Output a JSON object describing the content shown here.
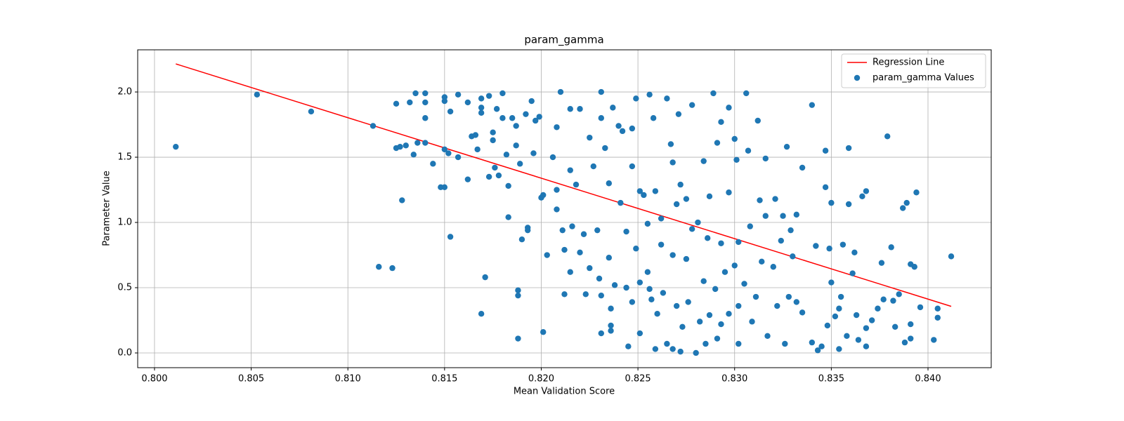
{
  "chart_data": {
    "type": "scatter",
    "title": "param_gamma",
    "x_label": "Mean Validation Score",
    "y_label": "Parameter Value",
    "xlim": [
      0.79913,
      0.84327
    ],
    "ylim": [
      -0.113,
      2.323
    ],
    "xticks": [
      {
        "value": 0.8,
        "label": "0.800"
      },
      0.805,
      {
        "value": 0.81,
        "label": "0.810"
      },
      0.815,
      {
        "value": 0.82,
        "label": "0.820"
      },
      0.825,
      {
        "value": 0.83,
        "label": "0.830"
      },
      0.835,
      {
        "value": 0.84,
        "label": "0.840"
      }
    ],
    "yticks": [
      {
        "value": 0,
        "label": "0.0"
      },
      0.5,
      {
        "value": 1,
        "label": "1.0"
      },
      1.5,
      {
        "value": 2,
        "label": "2.0"
      }
    ],
    "grid": true,
    "legend": "upper right",
    "series": [
      {
        "name": "Regression Line",
        "type": "line",
        "color": "#ff0000",
        "x": [
          0.8011,
          0.8412
        ],
        "values": [
          2.215,
          0.357
        ]
      },
      {
        "name": "param_gamma Values",
        "type": "scatter",
        "color": "#1f77b4",
        "x": [
          0.8011,
          0.8053,
          0.8081,
          0.8113,
          0.8116,
          0.8123,
          0.8125,
          0.8125,
          0.8127,
          0.8128,
          0.813,
          0.8132,
          0.8134,
          0.8135,
          0.8136,
          0.814,
          0.814,
          0.814,
          0.814,
          0.8144,
          0.8148,
          0.815,
          0.815,
          0.815,
          0.815,
          0.8152,
          0.8153,
          0.8153,
          0.8157,
          0.8157,
          0.8162,
          0.8162,
          0.8164,
          0.8166,
          0.8167,
          0.8169,
          0.8169,
          0.8169,
          0.8169,
          0.8171,
          0.8173,
          0.8173,
          0.8175,
          0.8175,
          0.8176,
          0.8177,
          0.8178,
          0.818,
          0.818,
          0.8182,
          0.8183,
          0.8183,
          0.8185,
          0.8187,
          0.8187,
          0.8188,
          0.8188,
          0.8188,
          0.8189,
          0.819,
          0.8192,
          0.8193,
          0.8193,
          0.8195,
          0.8196,
          0.8197,
          0.8199,
          0.82,
          0.8201,
          0.8201,
          0.8203,
          0.8206,
          0.8208,
          0.8208,
          0.8208,
          0.821,
          0.8211,
          0.8212,
          0.8212,
          0.8215,
          0.8215,
          0.8215,
          0.8216,
          0.8218,
          0.822,
          0.822,
          0.8222,
          0.8223,
          0.8225,
          0.8225,
          0.8227,
          0.8229,
          0.823,
          0.8231,
          0.8231,
          0.8231,
          0.8231,
          0.8233,
          0.8235,
          0.8235,
          0.8236,
          0.8236,
          0.8236,
          0.8237,
          0.8238,
          0.824,
          0.8241,
          0.8242,
          0.8244,
          0.8244,
          0.8245,
          0.8247,
          0.8247,
          0.8247,
          0.8249,
          0.8249,
          0.8251,
          0.8251,
          0.8251,
          0.8253,
          0.8255,
          0.8255,
          0.8256,
          0.8256,
          0.8257,
          0.8258,
          0.8259,
          0.8259,
          0.826,
          0.8262,
          0.8262,
          0.8263,
          0.8265,
          0.8265,
          0.8267,
          0.8268,
          0.8268,
          0.8268,
          0.827,
          0.827,
          0.8271,
          0.8272,
          0.8272,
          0.8273,
          0.8275,
          0.8275,
          0.8276,
          0.8278,
          0.8278,
          0.828,
          0.8281,
          0.8282,
          0.8284,
          0.8284,
          0.8285,
          0.8286,
          0.8287,
          0.8287,
          0.8289,
          0.829,
          0.8291,
          0.8291,
          0.8293,
          0.8293,
          0.8293,
          0.8295,
          0.8297,
          0.8297,
          0.8297,
          0.83,
          0.83,
          0.8301,
          0.8302,
          0.8302,
          0.8302,
          0.8305,
          0.8306,
          0.8307,
          0.8308,
          0.8309,
          0.8311,
          0.8312,
          0.8313,
          0.8314,
          0.8316,
          0.8316,
          0.8317,
          0.832,
          0.8321,
          0.8322,
          0.8324,
          0.8325,
          0.8326,
          0.8327,
          0.8328,
          0.8329,
          0.833,
          0.8332,
          0.8332,
          0.8335,
          0.8335,
          0.834,
          0.834,
          0.8342,
          0.8343,
          0.8345,
          0.8347,
          0.8347,
          0.8348,
          0.8349,
          0.835,
          0.835,
          0.8352,
          0.8354,
          0.8354,
          0.8355,
          0.8356,
          0.8358,
          0.8359,
          0.8359,
          0.8361,
          0.8362,
          0.8363,
          0.8364,
          0.8366,
          0.8368,
          0.8368,
          0.8368,
          0.8371,
          0.8374,
          0.8376,
          0.8377,
          0.8379,
          0.8381,
          0.8382,
          0.8383,
          0.8385,
          0.8387,
          0.8388,
          0.8389,
          0.8391,
          0.8391,
          0.8391,
          0.8393,
          0.8394,
          0.8396,
          0.8403,
          0.8405,
          0.8405,
          0.8412
        ],
        "values": [
          1.58,
          1.98,
          1.85,
          1.74,
          0.66,
          0.65,
          1.91,
          1.57,
          1.58,
          1.17,
          1.59,
          1.92,
          1.52,
          1.99,
          1.61,
          1.99,
          1.92,
          1.8,
          1.61,
          1.45,
          1.27,
          1.27,
          1.96,
          1.93,
          1.56,
          1.53,
          1.85,
          0.89,
          1.98,
          1.5,
          1.92,
          1.33,
          1.66,
          1.67,
          1.56,
          1.95,
          1.88,
          1.84,
          0.3,
          0.58,
          1.97,
          1.35,
          1.69,
          1.63,
          1.42,
          1.87,
          1.36,
          1.99,
          1.8,
          1.52,
          1.28,
          1.04,
          1.8,
          1.74,
          1.59,
          0.48,
          0.44,
          0.11,
          1.45,
          0.87,
          1.83,
          0.96,
          0.94,
          1.93,
          1.53,
          1.78,
          1.81,
          1.19,
          1.21,
          0.16,
          0.75,
          1.5,
          1.25,
          1.1,
          1.73,
          2.0,
          0.94,
          0.79,
          0.45,
          1.87,
          1.4,
          0.62,
          0.97,
          1.29,
          1.87,
          0.77,
          0.91,
          0.45,
          1.65,
          0.65,
          1.43,
          0.94,
          0.57,
          2.0,
          1.8,
          0.44,
          0.15,
          1.57,
          1.3,
          0.73,
          0.21,
          0.17,
          0.34,
          1.88,
          0.52,
          1.74,
          1.15,
          1.7,
          0.93,
          0.5,
          0.05,
          1.72,
          1.43,
          0.39,
          1.95,
          0.8,
          1.24,
          0.54,
          0.15,
          1.21,
          0.99,
          0.62,
          1.98,
          0.49,
          0.41,
          1.8,
          1.24,
          0.03,
          0.3,
          1.03,
          0.83,
          0.46,
          1.95,
          0.07,
          1.6,
          1.46,
          0.75,
          0.03,
          1.14,
          0.36,
          1.83,
          1.29,
          0.01,
          0.2,
          1.18,
          0.72,
          0.39,
          1.9,
          0.95,
          0.0,
          1.0,
          0.24,
          1.47,
          0.55,
          0.07,
          0.88,
          1.2,
          0.29,
          1.99,
          0.49,
          1.61,
          0.11,
          1.77,
          0.84,
          0.22,
          0.62,
          1.88,
          1.23,
          0.3,
          1.64,
          0.67,
          1.48,
          0.85,
          0.36,
          0.07,
          0.53,
          1.99,
          1.55,
          0.97,
          0.24,
          0.43,
          1.78,
          1.17,
          0.7,
          1.49,
          1.05,
          0.13,
          0.66,
          1.18,
          0.36,
          0.86,
          1.05,
          0.07,
          1.58,
          0.43,
          0.94,
          0.74,
          0.39,
          1.06,
          1.42,
          0.31,
          1.9,
          0.08,
          0.82,
          0.02,
          0.05,
          1.55,
          1.27,
          0.21,
          0.8,
          0.54,
          1.15,
          0.28,
          0.34,
          0.03,
          0.43,
          0.83,
          0.13,
          1.57,
          1.14,
          0.61,
          0.77,
          0.29,
          0.1,
          1.2,
          1.24,
          0.05,
          0.19,
          0.25,
          0.34,
          0.69,
          0.41,
          1.66,
          0.81,
          0.4,
          0.2,
          0.45,
          1.11,
          0.08,
          1.15,
          0.68,
          0.11,
          0.22,
          0.66,
          1.23,
          0.35,
          0.1,
          0.34,
          0.27,
          0.74
        ]
      }
    ]
  }
}
